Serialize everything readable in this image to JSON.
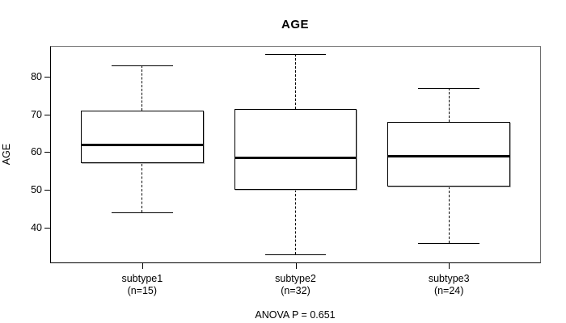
{
  "figure": {
    "title": "AGE",
    "annotation": "ANOVA P = 0.651"
  },
  "colors": {
    "line": "#000000",
    "frame": "#808080",
    "background": "#ffffff"
  },
  "chart_data": {
    "type": "boxplot",
    "title": "AGE",
    "xlabel": "",
    "ylabel": "AGE",
    "yticks": [
      40,
      50,
      60,
      70,
      80
    ],
    "ylim": [
      30.56,
      88.15
    ],
    "xlim": [
      0.4,
      3.6
    ],
    "grid": false,
    "annotation": "ANOVA P = 0.651",
    "groups": [
      {
        "x": 1,
        "label": "subtype1",
        "sublabel": "(n=15)",
        "n": 15,
        "min": 44,
        "q1": 57,
        "median": 62,
        "q3": 71,
        "max": 83
      },
      {
        "x": 2,
        "label": "subtype2",
        "sublabel": "(n=32)",
        "n": 32,
        "min": 33,
        "q1": 50,
        "median": 58.5,
        "q3": 71.5,
        "max": 86
      },
      {
        "x": 3,
        "label": "subtype3",
        "sublabel": "(n=24)",
        "n": 24,
        "min": 36,
        "q1": 51,
        "median": 59,
        "q3": 68,
        "max": 77
      }
    ],
    "box_width_units": 0.8,
    "cap_width_units": 0.4
  }
}
